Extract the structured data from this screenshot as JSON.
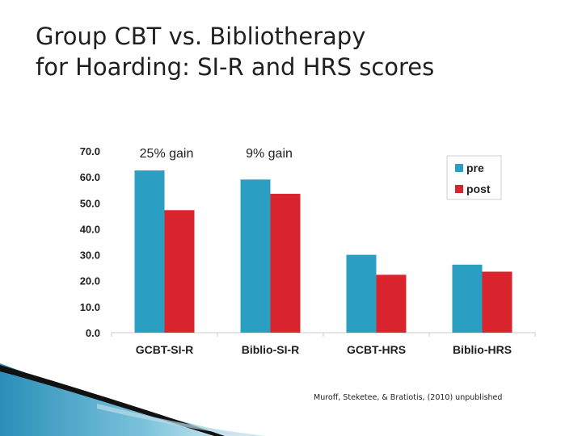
{
  "slide": {
    "title_line1": "Group CBT vs. Bibliotherapy",
    "title_line2": "for Hoarding: SI-R and HRS scores",
    "citation": "Muroff, Steketee, & Bratiotis, (2010) unpublished"
  },
  "colors": {
    "pre": "#2a9fc2",
    "post": "#d9232d",
    "text": "#1f1f1f"
  },
  "chart_data": {
    "type": "bar",
    "title": "",
    "xlabel": "",
    "ylabel": "",
    "categories": [
      "GCBT-SI-R",
      "Biblio-SI-R",
      "GCBT-HRS",
      "Biblio-HRS"
    ],
    "series": [
      {
        "name": "pre",
        "values": [
          62.5,
          59.0,
          30.0,
          26.2
        ]
      },
      {
        "name": "post",
        "values": [
          47.2,
          53.5,
          22.3,
          23.5
        ]
      }
    ],
    "ylim": [
      0,
      70
    ],
    "yticks": [
      "0.0",
      "10.0",
      "20.0",
      "30.0",
      "40.0",
      "50.0",
      "60.0",
      "70.0"
    ],
    "grid": false,
    "legend": "top-right",
    "annotations": [
      "25% gain",
      "9% gain"
    ]
  }
}
